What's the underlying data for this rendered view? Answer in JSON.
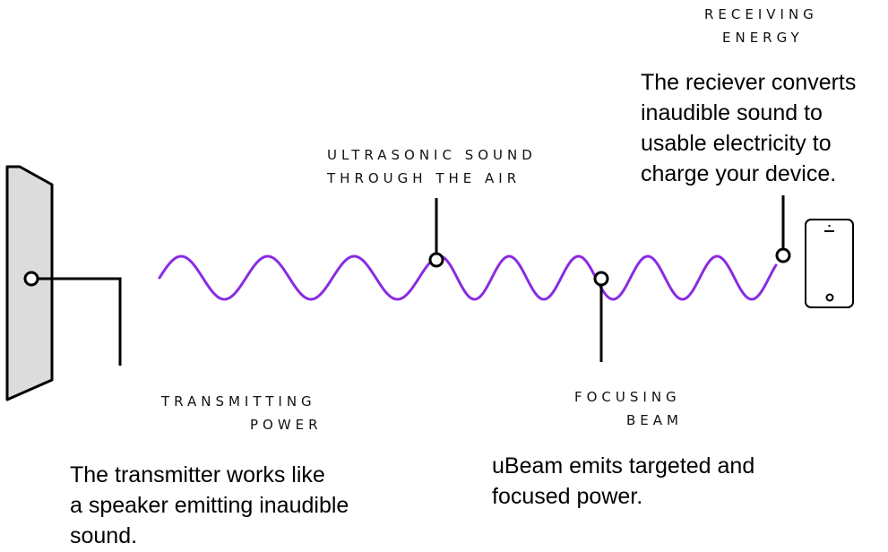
{
  "labels": {
    "receiving_line1": "RECEIVING",
    "receiving_line2": "ENERGY",
    "ultrasonic_line1": "ULTRASONIC SOUND",
    "ultrasonic_line2": "THROUGH THE AIR",
    "transmitting_line1": "TRANSMITTING",
    "transmitting_line2": "POWER",
    "focusing_line1": "FOCUSING",
    "focusing_line2": "BEAM"
  },
  "descriptions": {
    "receiver": [
      "The reciever converts",
      "inaudible sound to",
      "usable electricity to",
      "charge your device."
    ],
    "transmitter": [
      "The transmitter works like",
      "a speaker emitting inaudible",
      "sound."
    ],
    "beam": [
      "uBeam emits targeted and",
      "focused power."
    ]
  },
  "colors": {
    "wave": "#8a2be2",
    "transmitter_fill": "#dcdcdc",
    "line": "#000000"
  },
  "icons": {
    "transmitter": "speaker-panel-icon",
    "receiver": "smartphone-icon"
  }
}
